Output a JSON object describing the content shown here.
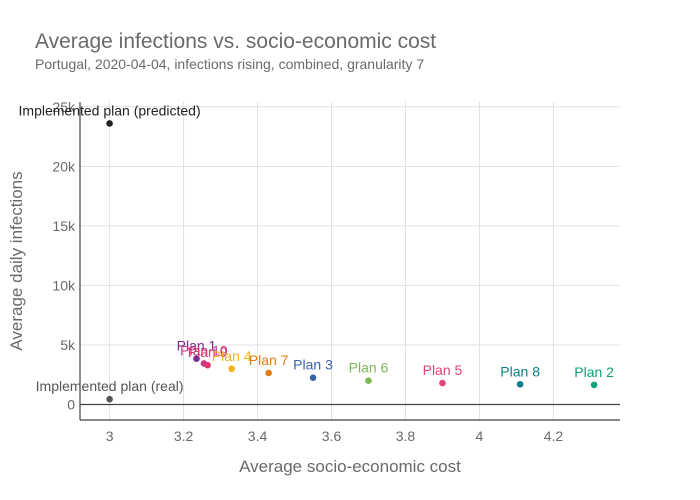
{
  "chart_data": {
    "type": "scatter",
    "title": "Average infections vs. socio-economic cost",
    "subtitle": "Portugal, 2020-04-04, infections rising, combined, granularity 7",
    "xlabel": "Average socio-economic cost",
    "ylabel": "Average daily infections",
    "xlim": [
      2.92,
      4.38
    ],
    "ylim": [
      -1300,
      25400
    ],
    "x_ticks": [
      3,
      3.2,
      3.4,
      3.6,
      3.8,
      4,
      4.2
    ],
    "x_tick_labels": [
      "3",
      "3.2",
      "3.4",
      "3.6",
      "3.8",
      "4",
      "4.2"
    ],
    "y_ticks": [
      0,
      5000,
      10000,
      15000,
      20000,
      25000
    ],
    "y_tick_labels": [
      "0",
      "5k",
      "10k",
      "15k",
      "20k",
      "25k"
    ],
    "grid": true,
    "legend": "none",
    "points": [
      {
        "label": "Implemented plan (predicted)",
        "x": 3.0,
        "y": 23600,
        "color": "#222222"
      },
      {
        "label": "Implemented plan (real)",
        "x": 3.0,
        "y": 450,
        "color": "#555555"
      },
      {
        "label": "Plan 1",
        "x": 3.235,
        "y": 3850,
        "color": "#7b2d8e"
      },
      {
        "label": "Plan 10",
        "x": 3.255,
        "y": 3450,
        "color": "#c83a8a"
      },
      {
        "label": "Plan 9",
        "x": 3.265,
        "y": 3300,
        "color": "#e0356e"
      },
      {
        "label": "Plan 4",
        "x": 3.33,
        "y": 3000,
        "color": "#f5b11f"
      },
      {
        "label": "Plan 7",
        "x": 3.43,
        "y": 2650,
        "color": "#e07c10"
      },
      {
        "label": "Plan 3",
        "x": 3.55,
        "y": 2250,
        "color": "#3a64ad"
      },
      {
        "label": "Plan 6",
        "x": 3.7,
        "y": 2000,
        "color": "#7ab852"
      },
      {
        "label": "Plan 5",
        "x": 3.9,
        "y": 1800,
        "color": "#e0437d"
      },
      {
        "label": "Plan 8",
        "x": 4.11,
        "y": 1700,
        "color": "#0a7f8a"
      },
      {
        "label": "Plan 2",
        "x": 4.31,
        "y": 1650,
        "color": "#12a079"
      }
    ]
  }
}
